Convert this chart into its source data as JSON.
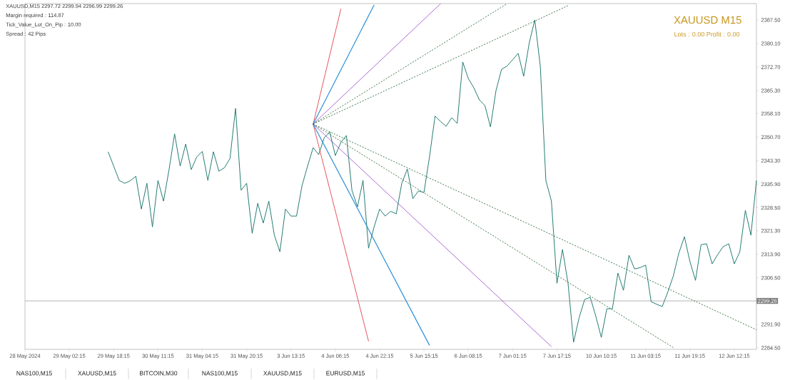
{
  "chart_data": {
    "type": "line",
    "title": "XAUUSD M15",
    "subtitle": "Lots : 0.00 Profit : 0.00",
    "annotations": [
      "XAUUSD,M15  2297.72 2299.94 2296.99 2299.26",
      "Margin required : 114.87",
      "Tick_Value_Lot_On_Pip : 10.00",
      "Spread : 42  Pips",
      "NAS100,M15",
      "XAUUSD,M15",
      "BITCOIN,M30",
      "NAS100,M15",
      "XAUUSD,M15",
      "EURUSD,M15"
    ],
    "categories": [
      "28 May 2024",
      null,
      null,
      null,
      null,
      null,
      null,
      null,
      "29 May 02:15",
      null,
      null,
      null,
      null,
      null,
      null,
      null,
      "29 May 18:15",
      null,
      null,
      null,
      null,
      null,
      null,
      null,
      "30 May 11:15",
      null,
      null,
      null,
      null,
      null,
      null,
      null,
      "31 May 04:15",
      null,
      null,
      null,
      null,
      null,
      null,
      null,
      "31 May 20:15",
      null,
      null,
      null,
      null,
      null,
      null,
      null,
      "3 Jun 13:15",
      null,
      null,
      null,
      null,
      null,
      null,
      null,
      "4 Jun 06:15",
      null,
      null,
      null,
      null,
      null,
      null,
      null,
      "4 Jun 22:15",
      null,
      null,
      null,
      null,
      null,
      null,
      null,
      "5 Jun 15:15",
      null,
      null,
      null,
      null,
      null,
      null,
      null,
      "6 Jun 08:15",
      null,
      null,
      null,
      null,
      null,
      null,
      null,
      "7 Jun 01:15",
      null,
      null,
      null,
      null,
      null,
      null,
      null,
      "7 Jun 17:15",
      null,
      null,
      null,
      null,
      null,
      null,
      null,
      "10 Jun 10:15",
      null,
      null,
      null,
      null,
      null,
      null,
      null,
      "11 Jun 03:15",
      null,
      null,
      null,
      null,
      null,
      null,
      null,
      "11 Jun 19:15",
      null,
      null,
      null,
      null,
      null,
      null,
      null,
      "12 Jun 12:15",
      null,
      null,
      null,
      null
    ],
    "ylim": [
      2284.05,
      2392.65
    ],
    "yticks": [
      {
        "value": 2387.5,
        "label": "2387.50"
      },
      {
        "value": 2380.1,
        "label": "2380.10"
      },
      {
        "value": 2372.7,
        "label": "2372.70"
      },
      {
        "value": 2365.3,
        "label": "2365.30"
      },
      {
        "value": 2358.1,
        "label": "2358.10"
      },
      {
        "value": 2350.7,
        "label": "2350.70"
      },
      {
        "value": 2343.3,
        "label": "2343.30"
      },
      {
        "value": 2335.9,
        "label": "2335.90"
      },
      {
        "value": 2328.5,
        "label": "2328.50"
      },
      {
        "value": 2321.3,
        "label": "2321.30"
      },
      {
        "value": 2313.9,
        "label": "2313.90"
      },
      {
        "value": 2306.5,
        "label": "2306.50"
      },
      {
        "value": 2291.9,
        "label": "2291.90"
      },
      {
        "value": 2284.5,
        "label": "2284.50"
      }
    ],
    "ref_lines": [
      {
        "axis": "y",
        "value": 2299.26,
        "label": "2299.26",
        "color": "#7f7f7f"
      }
    ],
    "marker": "none",
    "series": [
      {
        "color": "#0f6e64",
        "line_style": "solid",
        "values": [
          null,
          null,
          null,
          null,
          null,
          null,
          null,
          null,
          null,
          null,
          null,
          null,
          null,
          null,
          null,
          2346.1,
          2341.6,
          2337.1,
          2336.2,
          2337.0,
          2338.4,
          2328.1,
          2336.2,
          2322.5,
          2337.1,
          2330.6,
          2340.5,
          2351.7,
          2341.6,
          2348.5,
          2340.5,
          2344.5,
          2346.2,
          2337.1,
          2346.1,
          2340.0,
          2341.1,
          2344.0,
          2359.7,
          2334.0,
          2336.2,
          2320.5,
          2329.9,
          2323.7,
          2330.6,
          2319.9,
          2314.7,
          2328.1,
          2325.9,
          2325.9,
          2335.5,
          2341.6,
          2347.4,
          2345.2,
          2350.5,
          2352.3,
          2344.9,
          2349.0,
          2351.2,
          2334.0,
          2328.8,
          2337.1,
          2315.8,
          2322.5,
          2328.1,
          2325.9,
          2327.4,
          2326.6,
          2336.2,
          2340.7,
          2331.4,
          2333.8,
          2333.3,
          2344.5,
          2357.3,
          2355.6,
          2354.1,
          2356.8,
          2355.0,
          2374.3,
          2369.1,
          2366.2,
          2362.4,
          2360.6,
          2353.9,
          2365.3,
          2372.0,
          2373.0,
          2375.0,
          2377.0,
          2369.8,
          2380.3,
          2387.5,
          2372.9,
          2337.1,
          2330.6,
          2304.8,
          2315.4,
          2304.8,
          2286.3,
          2294.0,
          2299.7,
          2300.4,
          2294.5,
          2287.8,
          2296.8,
          2296.8,
          2308.0,
          2302.6,
          2313.6,
          2309.3,
          2309.7,
          2310.5,
          2299.0,
          2298.2,
          2297.5,
          2302.0,
          2307.1,
          2314.3,
          2319.4,
          2311.6,
          2305.7,
          2316.9,
          2317.2,
          2310.9,
          2313.8,
          2316.3,
          2317.2,
          2310.9,
          2314.7,
          2327.7,
          2319.9,
          2337.1
        ]
      },
      {
        "color": "#e0303a",
        "line_style": "dotted",
        "values": [
          null,
          null,
          null,
          null,
          null,
          null,
          null,
          null,
          null,
          null,
          null,
          null,
          null,
          null,
          null,
          null,
          null,
          null,
          null,
          null,
          null,
          null,
          null,
          null,
          null,
          null,
          null,
          null,
          null,
          null,
          null,
          null,
          null,
          null,
          null,
          null,
          null,
          null,
          null,
          null,
          null,
          null,
          null,
          null,
          null,
          null,
          null,
          null,
          null,
          null,
          null,
          null,
          2354.8,
          null,
          null,
          null,
          null,
          2390.9,
          null,
          null,
          null,
          null,
          null,
          null,
          null,
          null,
          null,
          null,
          null,
          null,
          null,
          null,
          null,
          null,
          null,
          null,
          null,
          null,
          null,
          null,
          null,
          null,
          null,
          null,
          null,
          null,
          null,
          null,
          null,
          null,
          null,
          null,
          null,
          null,
          null,
          null,
          null,
          null,
          null,
          null,
          null,
          null,
          null,
          null,
          null,
          null,
          null,
          null,
          null,
          null,
          null,
          null,
          null,
          null,
          null,
          null,
          null,
          null,
          null,
          null,
          null,
          null,
          null,
          null,
          null,
          null,
          null,
          null,
          null,
          null,
          null,
          null,
          null
        ]
      },
      {
        "color": "#e0303a",
        "line_style": "dotted",
        "values": [
          null,
          null,
          null,
          null,
          null,
          null,
          null,
          null,
          null,
          null,
          null,
          null,
          null,
          null,
          null,
          null,
          null,
          null,
          null,
          null,
          null,
          null,
          null,
          null,
          null,
          null,
          null,
          null,
          null,
          null,
          null,
          null,
          null,
          null,
          null,
          null,
          null,
          null,
          null,
          null,
          null,
          null,
          null,
          null,
          null,
          null,
          null,
          null,
          null,
          null,
          null,
          null,
          2354.8,
          null,
          null,
          null,
          null,
          null,
          null,
          null,
          null,
          null,
          2286.6,
          null,
          null,
          null,
          null,
          null,
          null,
          null,
          null,
          null,
          null,
          null,
          null,
          null,
          null,
          null,
          null,
          null,
          null,
          null,
          null,
          null,
          null,
          null,
          null,
          null,
          null,
          null,
          null,
          null,
          null,
          null,
          null,
          null,
          null,
          null,
          null,
          null,
          null,
          null,
          null,
          null,
          null,
          null,
          null,
          null,
          null,
          null,
          null,
          null,
          null,
          null,
          null,
          null,
          null,
          null,
          null,
          null,
          null,
          null,
          null,
          null,
          null,
          null,
          null,
          null,
          null,
          null,
          null,
          null,
          null
        ]
      },
      {
        "color": "#2a8fd8",
        "line_style": "solid",
        "values": [
          null,
          null,
          null,
          null,
          null,
          null,
          null,
          null,
          null,
          null,
          null,
          null,
          null,
          null,
          null,
          null,
          null,
          null,
          null,
          null,
          null,
          null,
          null,
          null,
          null,
          null,
          null,
          null,
          null,
          null,
          null,
          null,
          null,
          null,
          null,
          null,
          null,
          null,
          null,
          null,
          null,
          null,
          null,
          null,
          null,
          null,
          null,
          null,
          null,
          null,
          null,
          null,
          2354.8,
          null,
          null,
          null,
          null,
          null,
          null,
          null,
          null,
          null,
          null,
          2392.2,
          null,
          null,
          null,
          null,
          null,
          null,
          null,
          null,
          null,
          null,
          null,
          null,
          null,
          null,
          null,
          null,
          null,
          null,
          null,
          null,
          null,
          null,
          null,
          null,
          null,
          null,
          null,
          null,
          null,
          null,
          null,
          null,
          null,
          null,
          null,
          null,
          null,
          null,
          null,
          null,
          null,
          null,
          null,
          null,
          null,
          null,
          null,
          null,
          null,
          null,
          null,
          null,
          null,
          null,
          null,
          null,
          null,
          null,
          null,
          null,
          null,
          null,
          null,
          null,
          null,
          null,
          null,
          null,
          null
        ]
      },
      {
        "color": "#2a8fd8",
        "line_style": "solid",
        "values": [
          null,
          null,
          null,
          null,
          null,
          null,
          null,
          null,
          null,
          null,
          null,
          null,
          null,
          null,
          null,
          null,
          null,
          null,
          null,
          null,
          null,
          null,
          null,
          null,
          null,
          null,
          null,
          null,
          null,
          null,
          null,
          null,
          null,
          null,
          null,
          null,
          null,
          null,
          null,
          null,
          null,
          null,
          null,
          null,
          null,
          null,
          null,
          null,
          null,
          null,
          null,
          null,
          2354.8,
          null,
          null,
          null,
          null,
          null,
          null,
          null,
          null,
          null,
          null,
          null,
          null,
          null,
          null,
          null,
          null,
          null,
          null,
          null,
          null,
          2285.3,
          null,
          null,
          null,
          null,
          null,
          null,
          null,
          null,
          null,
          null,
          null,
          null,
          null,
          null,
          null,
          null,
          null,
          null,
          null,
          null,
          null,
          null,
          null,
          null,
          null,
          null,
          null,
          null,
          null,
          null,
          null,
          null,
          null,
          null,
          null,
          null,
          null,
          null,
          null,
          null,
          null,
          null,
          null,
          null,
          null,
          null,
          null,
          null,
          null,
          null,
          null,
          null,
          null,
          null,
          null,
          null,
          null,
          null,
          null
        ]
      },
      {
        "color": "#8a2bc0",
        "line_style": "solid",
        "values": [
          null,
          null,
          null,
          null,
          null,
          null,
          null,
          null,
          null,
          null,
          null,
          null,
          null,
          null,
          null,
          null,
          null,
          null,
          null,
          null,
          null,
          null,
          null,
          null,
          null,
          null,
          null,
          null,
          null,
          null,
          null,
          null,
          null,
          null,
          null,
          null,
          null,
          null,
          null,
          null,
          null,
          null,
          null,
          null,
          null,
          null,
          null,
          null,
          null,
          null,
          null,
          null,
          2354.8,
          null,
          null,
          null,
          null,
          null,
          null,
          null,
          null,
          null,
          null,
          null,
          null,
          null,
          null,
          null,
          null,
          null,
          null,
          null,
          null,
          null,
          null,
          2392.6,
          null,
          null,
          null,
          null,
          null,
          null,
          null,
          null,
          null,
          null,
          null,
          null,
          null,
          null,
          null,
          null,
          null,
          null,
          null,
          null,
          null,
          null,
          null,
          null,
          null,
          null,
          null,
          null,
          null,
          null,
          null,
          null,
          null,
          null,
          null,
          null,
          null,
          null,
          null,
          null,
          null,
          null,
          null,
          null,
          null,
          null,
          null,
          null,
          null,
          null,
          null,
          null,
          null,
          null,
          null,
          null,
          null
        ]
      },
      {
        "color": "#8a2bc0",
        "line_style": "solid",
        "values": [
          null,
          null,
          null,
          null,
          null,
          null,
          null,
          null,
          null,
          null,
          null,
          null,
          null,
          null,
          null,
          null,
          null,
          null,
          null,
          null,
          null,
          null,
          null,
          null,
          null,
          null,
          null,
          null,
          null,
          null,
          null,
          null,
          null,
          null,
          null,
          null,
          null,
          null,
          null,
          null,
          null,
          null,
          null,
          null,
          null,
          null,
          null,
          null,
          null,
          null,
          null,
          null,
          2354.8,
          null,
          null,
          null,
          null,
          null,
          null,
          null,
          null,
          null,
          null,
          null,
          null,
          null,
          null,
          null,
          null,
          null,
          null,
          null,
          null,
          null,
          null,
          null,
          null,
          null,
          null,
          null,
          null,
          null,
          null,
          null,
          null,
          null,
          null,
          null,
          null,
          null,
          null,
          null,
          null,
          null,
          null,
          2284.9,
          null,
          null,
          null,
          null,
          null,
          null,
          null,
          null,
          null,
          null,
          null,
          null,
          null,
          null,
          null,
          null,
          null,
          null,
          null,
          null,
          null,
          null,
          null,
          null,
          null,
          null,
          null,
          null,
          null,
          null,
          null,
          null,
          null,
          null,
          null,
          null,
          null
        ]
      },
      {
        "color": "#2e6b3a",
        "line_style": "dashed",
        "values": [
          null,
          null,
          null,
          null,
          null,
          null,
          null,
          null,
          null,
          null,
          null,
          null,
          null,
          null,
          null,
          null,
          null,
          null,
          null,
          null,
          null,
          null,
          null,
          null,
          null,
          null,
          null,
          null,
          null,
          null,
          null,
          null,
          null,
          null,
          null,
          null,
          null,
          null,
          null,
          null,
          null,
          null,
          null,
          null,
          null,
          null,
          null,
          null,
          null,
          null,
          null,
          null,
          2354.8,
          null,
          null,
          null,
          null,
          null,
          null,
          null,
          null,
          null,
          null,
          null,
          null,
          null,
          null,
          null,
          null,
          null,
          null,
          null,
          null,
          null,
          null,
          null,
          null,
          null,
          null,
          null,
          null,
          null,
          null,
          null,
          null,
          null,
          null,
          2392.6,
          null,
          null,
          null,
          null,
          null,
          null,
          null,
          null,
          null,
          null,
          null,
          null,
          null,
          null,
          null,
          null,
          null,
          null,
          null,
          null,
          null,
          null,
          null,
          null,
          null,
          null,
          null,
          null,
          null,
          null,
          null,
          null,
          null,
          null,
          null,
          null,
          null,
          null,
          null,
          null,
          null,
          null,
          null,
          null,
          null
        ]
      },
      {
        "color": "#2e6b3a",
        "line_style": "dashed",
        "values": [
          null,
          null,
          null,
          null,
          null,
          null,
          null,
          null,
          null,
          null,
          null,
          null,
          null,
          null,
          null,
          null,
          null,
          null,
          null,
          null,
          null,
          null,
          null,
          null,
          null,
          null,
          null,
          null,
          null,
          null,
          null,
          null,
          null,
          null,
          null,
          null,
          null,
          null,
          null,
          null,
          null,
          null,
          null,
          null,
          null,
          null,
          null,
          null,
          null,
          null,
          null,
          null,
          2354.8,
          null,
          null,
          null,
          null,
          null,
          null,
          null,
          null,
          null,
          null,
          null,
          null,
          null,
          null,
          null,
          null,
          null,
          null,
          null,
          null,
          null,
          null,
          null,
          null,
          null,
          null,
          null,
          null,
          null,
          null,
          null,
          null,
          null,
          null,
          null,
          null,
          null,
          null,
          null,
          null,
          null,
          null,
          null,
          null,
          null,
          2392.0,
          null,
          null,
          null,
          null,
          null,
          null,
          null,
          null,
          null,
          null,
          null,
          null,
          null,
          null,
          null,
          null,
          null,
          null,
          null,
          null,
          null,
          null,
          null,
          null,
          null,
          null,
          null,
          null,
          null,
          null,
          null,
          null,
          null,
          null
        ]
      },
      {
        "color": "#2e6b3a",
        "line_style": "dashed",
        "values": [
          null,
          null,
          null,
          null,
          null,
          null,
          null,
          null,
          null,
          null,
          null,
          null,
          null,
          null,
          null,
          null,
          null,
          null,
          null,
          null,
          null,
          null,
          null,
          null,
          null,
          null,
          null,
          null,
          null,
          null,
          null,
          null,
          null,
          null,
          null,
          null,
          null,
          null,
          null,
          null,
          null,
          null,
          null,
          null,
          null,
          null,
          null,
          null,
          null,
          null,
          null,
          null,
          2354.8,
          null,
          null,
          null,
          null,
          null,
          null,
          null,
          null,
          null,
          null,
          null,
          null,
          null,
          null,
          null,
          null,
          null,
          null,
          null,
          null,
          null,
          null,
          null,
          null,
          null,
          null,
          null,
          null,
          null,
          null,
          null,
          null,
          null,
          null,
          null,
          null,
          null,
          null,
          null,
          null,
          null,
          null,
          null,
          null,
          null,
          null,
          null,
          null,
          null,
          null,
          null,
          null,
          null,
          null,
          null,
          null,
          null,
          null,
          null,
          null,
          null,
          null,
          null,
          null,
          2284.6,
          null,
          null,
          null,
          null,
          null,
          null,
          null,
          null,
          null,
          null,
          null,
          null,
          null,
          null,
          null
        ]
      },
      {
        "color": "#2e6b3a",
        "line_style": "dashed",
        "values": [
          null,
          null,
          null,
          null,
          null,
          null,
          null,
          null,
          null,
          null,
          null,
          null,
          null,
          null,
          null,
          null,
          null,
          null,
          null,
          null,
          null,
          null,
          null,
          null,
          null,
          null,
          null,
          null,
          null,
          null,
          null,
          null,
          null,
          null,
          null,
          null,
          null,
          null,
          null,
          null,
          null,
          null,
          null,
          null,
          null,
          null,
          null,
          null,
          null,
          null,
          null,
          null,
          2354.8,
          null,
          null,
          null,
          null,
          null,
          null,
          null,
          null,
          null,
          null,
          null,
          null,
          null,
          null,
          null,
          null,
          null,
          null,
          null,
          null,
          null,
          null,
          null,
          null,
          null,
          null,
          null,
          null,
          null,
          null,
          null,
          null,
          null,
          null,
          null,
          null,
          null,
          null,
          null,
          null,
          null,
          null,
          null,
          null,
          null,
          null,
          null,
          null,
          null,
          null,
          null,
          null,
          null,
          null,
          null,
          null,
          null,
          null,
          null,
          null,
          null,
          null,
          null,
          null,
          null,
          null,
          null,
          null,
          null,
          null,
          null,
          null,
          null,
          null,
          null,
          null,
          null,
          null,
          null,
          2290.2
        ]
      }
    ]
  }
}
